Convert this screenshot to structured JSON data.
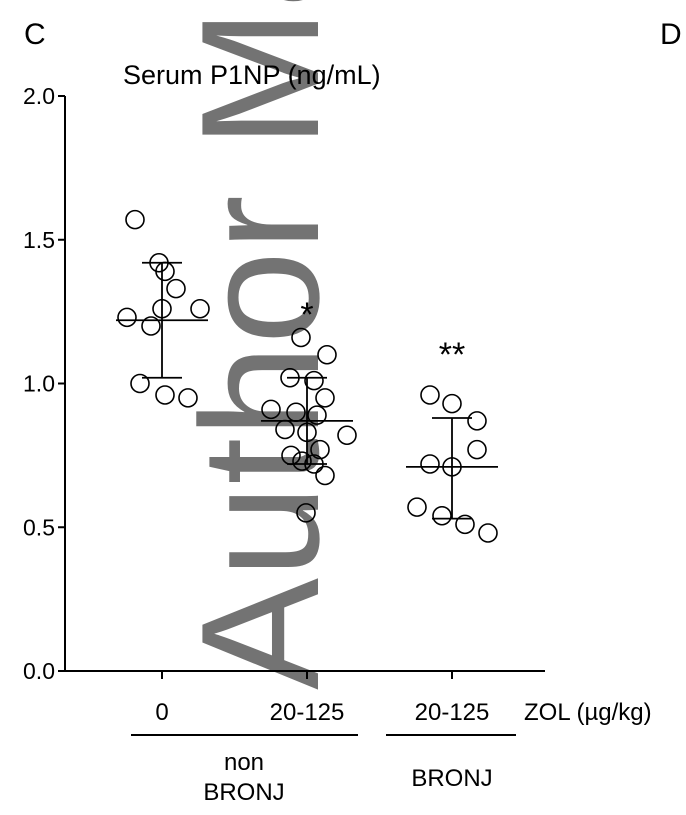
{
  "panel_label": "C",
  "next_panel_label": "D",
  "watermark": "Author Ma",
  "chart_data": {
    "type": "scatter",
    "title": "Serum P1NP (ng/mL)",
    "ylabel": "",
    "xlabel": "",
    "ylim": [
      0,
      2.0
    ],
    "y_ticks": [
      "0.0",
      "0.5",
      "1.0",
      "1.5",
      "2.0"
    ],
    "categories": [
      "0",
      "20-125",
      "20-125"
    ],
    "x_unit_label": "ZOL (µg/kg)",
    "group_labels": [
      {
        "line1": "non",
        "line2": "BRONJ"
      },
      {
        "line1": "",
        "line2": "BRONJ"
      }
    ],
    "series": [
      {
        "values": [
          1.57,
          1.42,
          1.39,
          1.33,
          1.26,
          1.26,
          1.23,
          1.2,
          1.0,
          0.96,
          0.95
        ],
        "mean": 1.22,
        "sd_upper": 1.42,
        "sd_lower": 1.02,
        "significance": ""
      },
      {
        "values": [
          1.16,
          1.1,
          1.02,
          1.01,
          0.95,
          0.91,
          0.9,
          0.89,
          0.84,
          0.83,
          0.82,
          0.77,
          0.75,
          0.73,
          0.72,
          0.68,
          0.55
        ],
        "mean": 0.87,
        "sd_upper": 1.02,
        "sd_lower": 0.72,
        "significance": "*"
      },
      {
        "values": [
          0.96,
          0.93,
          0.87,
          0.77,
          0.72,
          0.71,
          0.57,
          0.54,
          0.51,
          0.48
        ],
        "mean": 0.71,
        "sd_upper": 0.88,
        "sd_lower": 0.53,
        "significance": "**"
      }
    ],
    "grid": false,
    "legend": "none"
  }
}
